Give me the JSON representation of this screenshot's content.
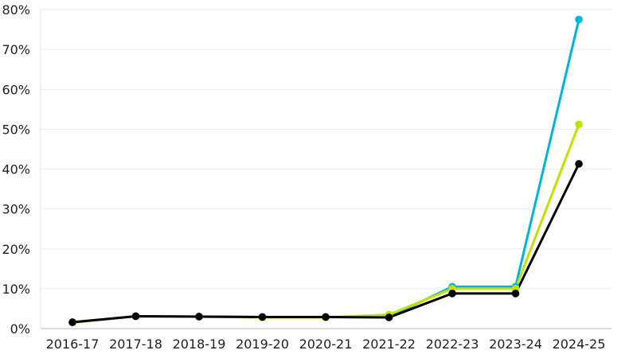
{
  "chart_data": {
    "type": "line",
    "categories": [
      "2016-17",
      "2017-18",
      "2018-19",
      "2019-20",
      "2020-21",
      "2021-22",
      "2022-23",
      "2023-24",
      "2024-25"
    ],
    "series": [
      {
        "color": "#00b4dc",
        "values": [
          1.5,
          3.1,
          3.0,
          2.9,
          2.9,
          2.9,
          10.5,
          10.5,
          77.5
        ]
      },
      {
        "color": "#c3e000",
        "values": [
          1.5,
          3.1,
          3.0,
          2.8,
          2.8,
          3.5,
          10.0,
          10.0,
          51.2
        ]
      },
      {
        "color": "#000000",
        "values": [
          1.6,
          3.1,
          3.0,
          2.9,
          2.9,
          2.8,
          8.8,
          8.8,
          41.3
        ]
      }
    ],
    "yticks": [
      "0%",
      "10%",
      "20%",
      "30%",
      "40%",
      "50%",
      "60%",
      "70%",
      "80%"
    ],
    "ytick_values": [
      0,
      10,
      20,
      30,
      40,
      50,
      60,
      70,
      80
    ],
    "ylim": [
      0,
      80
    ],
    "grid": true,
    "legend": "none",
    "title": "",
    "xlabel": "",
    "ylabel": ""
  }
}
